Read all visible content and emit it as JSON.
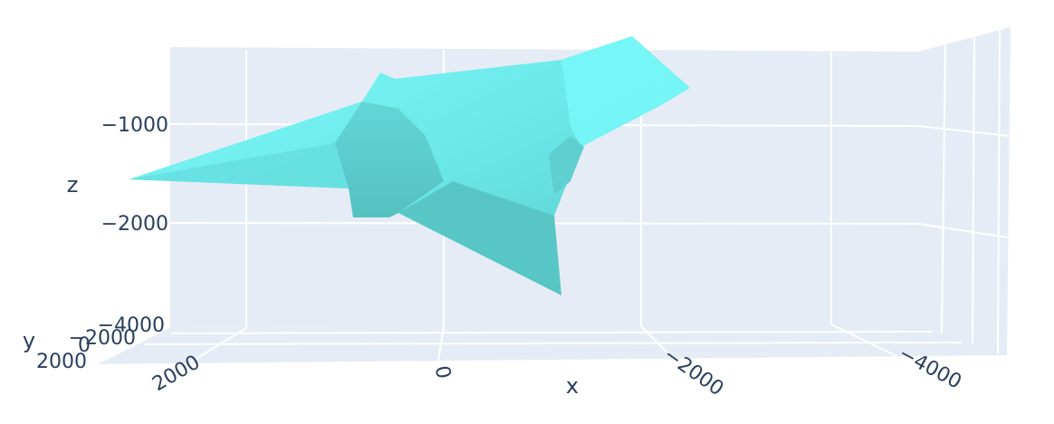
{
  "chart_data": {
    "type": "mesh3d",
    "title": "",
    "colors": {
      "mesh": "#6ef4f4",
      "mesh_shade": "#5cc9c9",
      "pane": "#e5ecf6",
      "grid": "#ffffff",
      "text": "#2a3f5f"
    },
    "axes": {
      "x": {
        "label": "x",
        "ticks": [
          2000,
          0,
          -2000,
          -4000
        ],
        "tick_labels": [
          "2000",
          "0",
          "−2000",
          "−4000"
        ],
        "reversed": true
      },
      "y": {
        "label": "y",
        "ticks": [
          2000,
          0,
          -2000
        ],
        "tick_labels": [
          "2000",
          "0",
          "−2000"
        ]
      },
      "z": {
        "label": "z",
        "ticks": [
          -1000,
          -2000,
          -4000
        ],
        "tick_labels": [
          "−1000",
          "−2000",
          "−4000"
        ]
      }
    },
    "grid": true,
    "legend": false
  }
}
